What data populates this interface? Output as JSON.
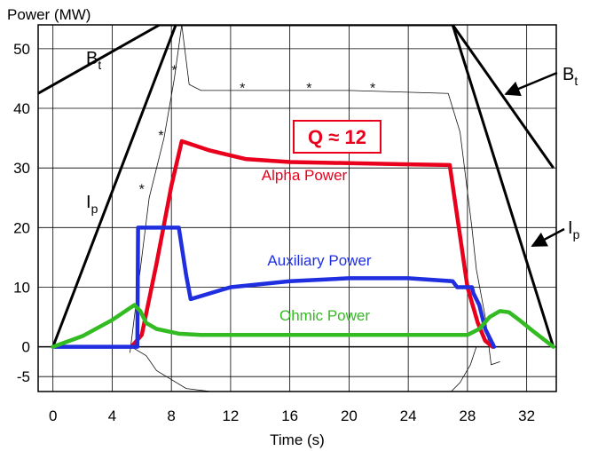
{
  "chart_data": {
    "type": "line",
    "title": "",
    "ylabel": "Power (MW)",
    "xlabel": "Time (s)",
    "xlim": [
      -1,
      34
    ],
    "ylim": [
      -7.5,
      54
    ],
    "xticks": [
      0,
      4,
      8,
      12,
      16,
      20,
      24,
      28,
      32
    ],
    "yticks": [
      -5,
      0,
      10,
      20,
      30,
      40,
      50
    ],
    "ytick_labels": [
      "-5",
      "0",
      "10",
      "20",
      "30",
      "40",
      "50"
    ],
    "grid": true,
    "q_label": "Q ≈ 12",
    "q_color": "#e8001c",
    "series": [
      {
        "name": "Alpha Power",
        "color": "#e8001c",
        "x": [
          5.3,
          6.0,
          7.0,
          8.0,
          8.7,
          10.5,
          13,
          16,
          20,
          24,
          26.8,
          27.3,
          28.0,
          28.7,
          29.2,
          29.7
        ],
        "y": [
          0,
          2,
          14,
          27,
          34.5,
          33,
          31.5,
          31,
          30.8,
          30.6,
          30.5,
          22,
          10,
          4,
          1,
          0
        ]
      },
      {
        "name": "Auxiliary Power",
        "color": "#1f2fe0",
        "x": [
          0,
          5.5,
          5.7,
          5.75,
          8.5,
          9.0,
          9.3,
          12,
          16,
          20,
          24,
          27.0,
          27.3,
          28.3,
          28.4,
          28.8,
          29.2,
          29.8
        ],
        "y": [
          0,
          0,
          0,
          20,
          20,
          12,
          8,
          10,
          11,
          11.5,
          11.5,
          11.0,
          10,
          10,
          9,
          7,
          3,
          0
        ]
      },
      {
        "name": "Ohmic Power",
        "color": "#33bb22",
        "x": [
          0,
          2,
          4,
          5.5,
          5.9,
          6.3,
          7.0,
          8.5,
          10,
          14,
          20,
          26,
          28.0,
          28.8,
          29.5,
          30.2,
          30.8,
          31.5,
          32.5,
          33.8
        ],
        "y": [
          0,
          1.8,
          4.5,
          7,
          6,
          4,
          3,
          2.2,
          2,
          2,
          2,
          2,
          2,
          3,
          5,
          6,
          5.8,
          4.5,
          2.5,
          0
        ]
      }
    ],
    "annotations": [
      {
        "text": "Alpha Power",
        "series": "Alpha Power",
        "x": 18.5,
        "y": 27.5
      },
      {
        "text": "Auxiliary Power",
        "series": "Auxiliary Power",
        "x": 23,
        "y": 13.5
      },
      {
        "text": "Ohmic Power",
        "series": "Ohmic Power",
        "x": 22,
        "y": 3.5
      }
    ],
    "overlay_curves": [
      {
        "name": "Bt",
        "label_main": "B",
        "label_sub": "t",
        "left_x": [
          -1,
          7.2,
          27,
          33.8
        ],
        "left_y": [
          42.5,
          54,
          54,
          30
        ]
      },
      {
        "name": "Ip",
        "label_main": "I",
        "label_sub": "p",
        "left_x": [
          0,
          8.3,
          27,
          33.8
        ],
        "left_y": [
          0,
          54,
          54,
          0
        ]
      }
    ]
  }
}
